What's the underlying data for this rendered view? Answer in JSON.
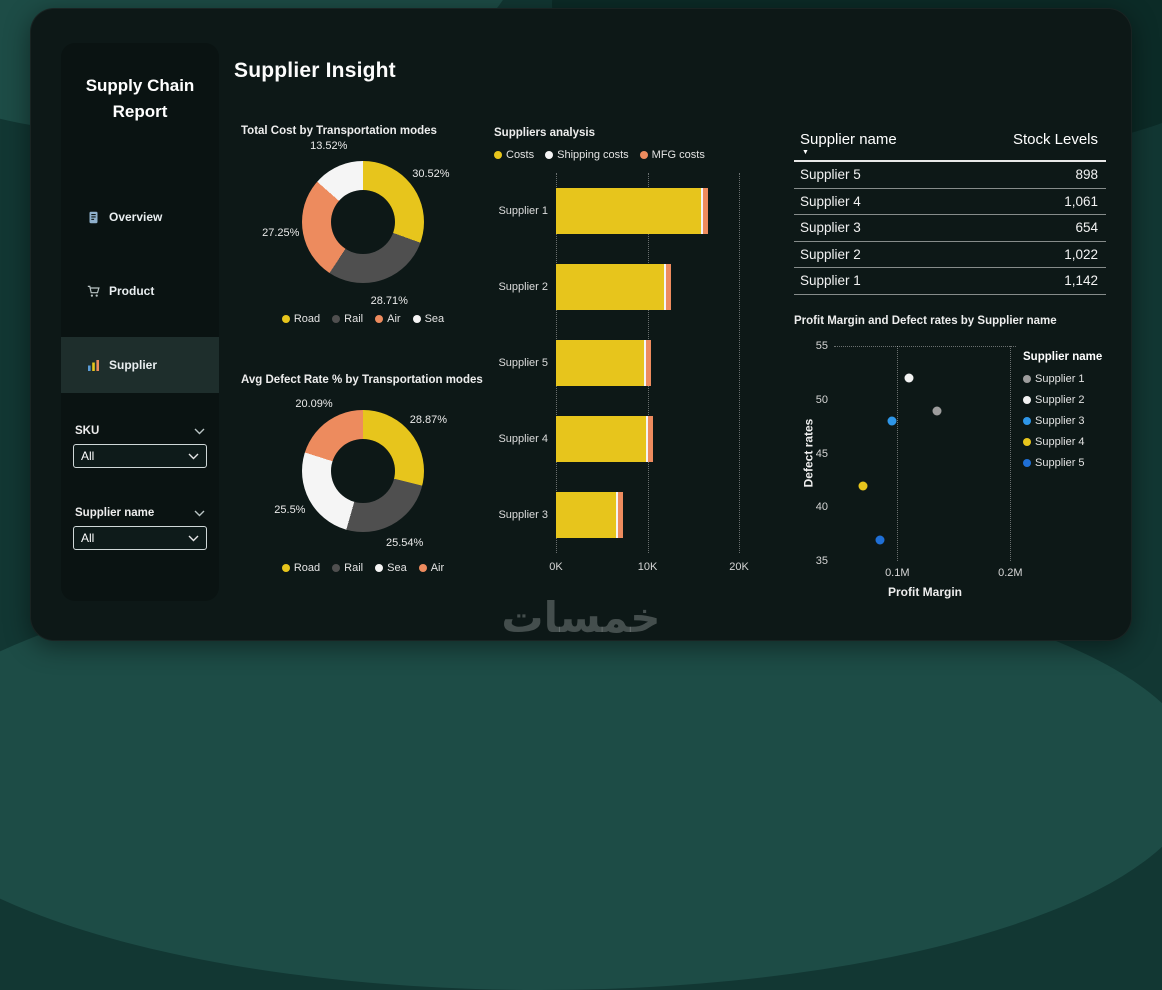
{
  "report": {
    "title": "Supply Chain Report",
    "page_title": "Supplier Insight",
    "nav": [
      {
        "label": "Overview",
        "active": false
      },
      {
        "label": "Product",
        "active": false
      },
      {
        "label": "Supplier",
        "active": true
      }
    ],
    "filters": [
      {
        "label": "SKU",
        "value": "All"
      },
      {
        "label": "Supplier name",
        "value": "All"
      }
    ]
  },
  "table": {
    "columns": [
      "Supplier name",
      "Stock Levels"
    ],
    "rows": [
      [
        "Supplier 5",
        "898"
      ],
      [
        "Supplier 4",
        "1,061"
      ],
      [
        "Supplier 3",
        "654"
      ],
      [
        "Supplier 2",
        "1,022"
      ],
      [
        "Supplier 1",
        "1,142"
      ]
    ]
  },
  "chart_data": [
    {
      "id": "transport_cost_donut",
      "type": "pie",
      "title": "Total Cost by Transportation modes",
      "labels": [
        "Road",
        "Rail",
        "Air",
        "Sea"
      ],
      "values": [
        30.52,
        28.71,
        27.25,
        13.52
      ],
      "value_labels": [
        "30.52%",
        "28.71%",
        "27.25%",
        "13.52%"
      ],
      "colors": [
        "#e7c51c",
        "#4f4f4f",
        "#ed8b5e",
        "#f5f5f5"
      ],
      "legend_position": "bottom"
    },
    {
      "id": "defect_rate_donut",
      "type": "pie",
      "title": "Avg Defect Rate % by Transportation modes",
      "labels": [
        "Road",
        "Rail",
        "Sea",
        "Air"
      ],
      "values": [
        28.87,
        25.54,
        25.5,
        20.09
      ],
      "value_labels": [
        "28.87%",
        "25.54%",
        "25.5%",
        "20.09%"
      ],
      "colors": [
        "#e7c51c",
        "#4f4f4f",
        "#f5f5f5",
        "#ed8b5e"
      ],
      "legend_position": "bottom"
    },
    {
      "id": "suppliers_analysis_bar",
      "type": "bar",
      "orientation": "horizontal",
      "title": "Suppliers analysis",
      "categories": [
        "Supplier 1",
        "Supplier 2",
        "Supplier 5",
        "Supplier 4",
        "Supplier 3"
      ],
      "series": [
        {
          "name": "Costs",
          "color": "#e7c51c",
          "values": [
            15850,
            11850,
            9650,
            9850,
            6550
          ]
        },
        {
          "name": "Shipping costs",
          "color": "#f5f5f5",
          "values": [
            200,
            200,
            200,
            200,
            200
          ]
        },
        {
          "name": "MFG costs",
          "color": "#ed8b5e",
          "values": [
            550,
            550,
            550,
            550,
            550
          ]
        }
      ],
      "x_ticks": [
        "0K",
        "10K",
        "20K"
      ],
      "xlim": [
        0,
        20000
      ],
      "legend_position": "top",
      "grid": "vertical-dotted"
    },
    {
      "id": "profit_defect_scatter",
      "type": "scatter",
      "title": "Profit Margin and Defect rates by Supplier name",
      "xlabel": "Profit Margin",
      "ylabel": "Defect rates",
      "legend_title": "Supplier name",
      "xlim": [
        0.044,
        0.205
      ],
      "ylim": [
        35,
        55
      ],
      "x_ticks": [
        {
          "label": "0.1M",
          "value": 0.1
        },
        {
          "label": "0.2M",
          "value": 0.2
        }
      ],
      "y_ticks": [
        55,
        50,
        45,
        40,
        35
      ],
      "points": [
        {
          "name": "Supplier 1",
          "x": 0.135,
          "y": 49,
          "color": "#9d9d9d"
        },
        {
          "name": "Supplier 2",
          "x": 0.11,
          "y": 52,
          "color": "#f2f2f2"
        },
        {
          "name": "Supplier 3",
          "x": 0.095,
          "y": 48,
          "color": "#2e96e8"
        },
        {
          "name": "Supplier 4",
          "x": 0.07,
          "y": 42,
          "color": "#e7c51c"
        },
        {
          "name": "Supplier 5",
          "x": 0.085,
          "y": 37,
          "color": "#1f6fd6"
        }
      ],
      "legend_position": "right",
      "grid": "dotted"
    }
  ],
  "watermark": "خمسات"
}
